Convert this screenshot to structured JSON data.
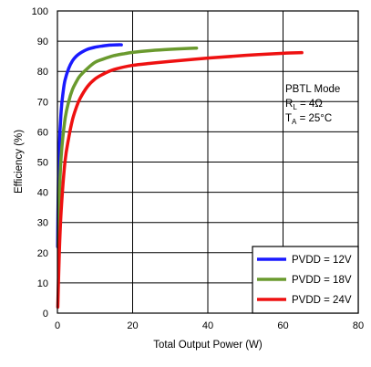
{
  "chart_data": {
    "type": "line",
    "title": "",
    "xlabel": "Total Output Power (W)",
    "ylabel": "Efficiency (%)",
    "xlim": [
      0,
      80
    ],
    "ylim": [
      0,
      100
    ],
    "xticks": [
      0,
      20,
      40,
      60,
      80
    ],
    "yticks": [
      0,
      10,
      20,
      30,
      40,
      50,
      60,
      70,
      80,
      90,
      100
    ],
    "grid": true,
    "legend_position": "bottom-right",
    "annotation": {
      "line1": "PBTL Mode",
      "line2_main": "R",
      "line2_sub": "L",
      "line2_rest": " = 4Ω",
      "line3_main": "T",
      "line3_sub": "A",
      "line3_rest": " = 25°C"
    },
    "series": [
      {
        "name": "PVDD = 12V",
        "color": "#1a1aff",
        "x": [
          0.05,
          0.2,
          0.5,
          1,
          1.5,
          2,
          3,
          4,
          5,
          6,
          8,
          10,
          12,
          14,
          16,
          17
        ],
        "y": [
          22,
          38,
          55,
          67,
          73,
          77,
          81,
          83.5,
          85,
          86,
          87.3,
          88,
          88.4,
          88.7,
          88.8,
          88.8
        ]
      },
      {
        "name": "PVDD = 18V",
        "color": "#6a9a2e",
        "x": [
          0.2,
          0.5,
          1,
          2,
          3,
          4,
          5,
          6,
          8,
          10,
          12,
          15,
          18,
          20,
          25,
          30,
          35,
          37
        ],
        "y": [
          22,
          38,
          52,
          64,
          70,
          74,
          76.5,
          78.5,
          81,
          83,
          84,
          85.2,
          85.9,
          86.3,
          86.9,
          87.3,
          87.6,
          87.7
        ]
      },
      {
        "name": "PVDD = 24V",
        "color": "#ee1111",
        "x": [
          0.1,
          0.5,
          1,
          2,
          3,
          4,
          5,
          6,
          8,
          10,
          12,
          15,
          20,
          25,
          30,
          40,
          50,
          60,
          65
        ],
        "y": [
          2,
          20,
          34,
          50,
          58,
          64,
          68,
          71,
          75,
          77.5,
          79,
          80.6,
          82,
          82.7,
          83.3,
          84.4,
          85.3,
          86,
          86.2
        ]
      }
    ]
  }
}
